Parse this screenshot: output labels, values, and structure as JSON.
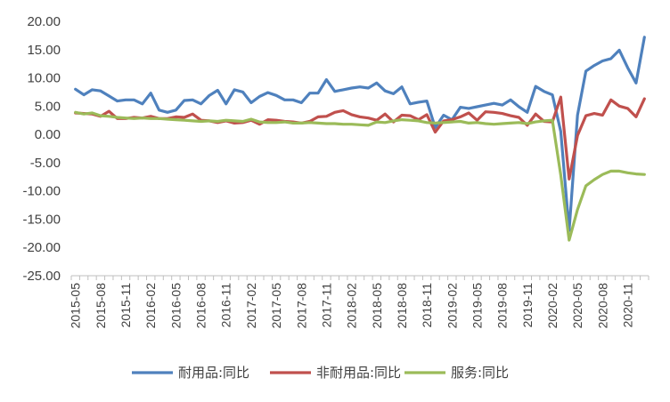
{
  "chart_data": {
    "type": "line",
    "title": "",
    "xlabel": "",
    "ylabel": "",
    "ylim": [
      -25,
      20
    ],
    "ytick_step": 5,
    "yticks": [
      "20.00",
      "15.00",
      "10.00",
      "5.00",
      "0.00",
      "-5.00",
      "-10.00",
      "-15.00",
      "-20.00",
      "-25.00"
    ],
    "grid": false,
    "legend_position": "bottom",
    "x_tick_labels": [
      "2015-05",
      "2015-08",
      "2015-11",
      "2016-02",
      "2016-05",
      "2016-08",
      "2016-11",
      "2017-02",
      "2017-05",
      "2017-08",
      "2017-11",
      "2018-02",
      "2018-05",
      "2018-08",
      "2018-11",
      "2019-02",
      "2019-05",
      "2019-08",
      "2019-11",
      "2020-02",
      "2020-05",
      "2020-08",
      "2020-11"
    ],
    "x": [
      "2015-05",
      "2015-06",
      "2015-07",
      "2015-08",
      "2015-09",
      "2015-10",
      "2015-11",
      "2015-12",
      "2016-01",
      "2016-02",
      "2016-03",
      "2016-04",
      "2016-05",
      "2016-06",
      "2016-07",
      "2016-08",
      "2016-09",
      "2016-10",
      "2016-11",
      "2016-12",
      "2017-01",
      "2017-02",
      "2017-03",
      "2017-04",
      "2017-05",
      "2017-06",
      "2017-07",
      "2017-08",
      "2017-09",
      "2017-10",
      "2017-11",
      "2017-12",
      "2018-01",
      "2018-02",
      "2018-03",
      "2018-04",
      "2018-05",
      "2018-06",
      "2018-07",
      "2018-08",
      "2018-09",
      "2018-10",
      "2018-11",
      "2018-12",
      "2019-01",
      "2019-02",
      "2019-03",
      "2019-04",
      "2019-05",
      "2019-06",
      "2019-07",
      "2019-08",
      "2019-09",
      "2019-10",
      "2019-11",
      "2019-12",
      "2020-01",
      "2020-02",
      "2020-03",
      "2020-04",
      "2020-05",
      "2020-06",
      "2020-07",
      "2020-08",
      "2020-09",
      "2020-10",
      "2020-11",
      "2020-12",
      "2021-01"
    ],
    "series": [
      {
        "name": "耐用品:同比",
        "color": "#4f81bd",
        "values": [
          8.0,
          7.0,
          7.9,
          7.7,
          6.8,
          5.9,
          6.1,
          6.1,
          5.4,
          7.3,
          4.3,
          3.9,
          4.3,
          6.0,
          6.1,
          5.4,
          6.9,
          7.8,
          5.4,
          7.9,
          7.5,
          5.6,
          6.7,
          7.4,
          6.9,
          6.1,
          6.1,
          5.6,
          7.3,
          7.3,
          9.7,
          7.6,
          7.9,
          8.2,
          8.4,
          8.2,
          9.1,
          7.7,
          7.2,
          8.4,
          5.4,
          5.7,
          5.9,
          1.2,
          3.4,
          2.6,
          4.8,
          4.6,
          4.9,
          5.2,
          5.5,
          5.2,
          6.1,
          4.9,
          3.9,
          8.5,
          7.6,
          7.0,
          0.5,
          -17.0,
          3.4,
          11.2,
          12.2,
          13.0,
          13.4,
          14.9,
          11.8,
          9.1,
          17.2
        ]
      },
      {
        "name": "非耐用品:同比",
        "color": "#c0504d",
        "values": [
          3.8,
          3.7,
          3.6,
          3.2,
          4.1,
          2.8,
          2.8,
          3.0,
          2.9,
          3.2,
          2.8,
          2.8,
          3.1,
          3.0,
          3.6,
          2.5,
          2.4,
          2.1,
          2.4,
          2.0,
          2.1,
          2.5,
          1.8,
          2.6,
          2.5,
          2.3,
          2.2,
          2.0,
          2.3,
          3.1,
          3.2,
          3.9,
          4.2,
          3.5,
          3.1,
          2.9,
          2.5,
          3.6,
          2.2,
          3.4,
          3.3,
          2.6,
          3.5,
          0.4,
          2.4,
          2.6,
          3.1,
          3.8,
          2.5,
          4.0,
          3.9,
          3.7,
          3.3,
          3.0,
          1.6,
          3.6,
          2.3,
          2.2,
          6.6,
          -7.9,
          -0.2,
          3.3,
          3.7,
          3.4,
          6.1,
          5.0,
          4.6,
          3.1,
          6.3
        ]
      },
      {
        "name": "服务:同比",
        "color": "#9bbb59",
        "values": [
          3.9,
          3.6,
          3.8,
          3.3,
          3.2,
          3.0,
          2.9,
          2.8,
          2.9,
          2.8,
          2.8,
          2.7,
          2.6,
          2.5,
          2.4,
          2.3,
          2.4,
          2.3,
          2.5,
          2.4,
          2.3,
          2.7,
          2.2,
          2.1,
          2.1,
          2.2,
          2.0,
          2.0,
          2.1,
          2.0,
          1.9,
          1.9,
          1.8,
          1.8,
          1.7,
          1.6,
          2.2,
          2.1,
          2.4,
          2.6,
          2.5,
          2.4,
          2.1,
          2.0,
          2.1,
          2.2,
          2.3,
          2.0,
          2.1,
          1.9,
          1.8,
          1.9,
          2.0,
          2.1,
          1.9,
          2.2,
          2.4,
          2.5,
          -7.2,
          -18.7,
          -13.3,
          -9.1,
          -8.0,
          -7.1,
          -6.5,
          -6.5,
          -6.8,
          -7.0,
          -7.1
        ]
      }
    ]
  }
}
